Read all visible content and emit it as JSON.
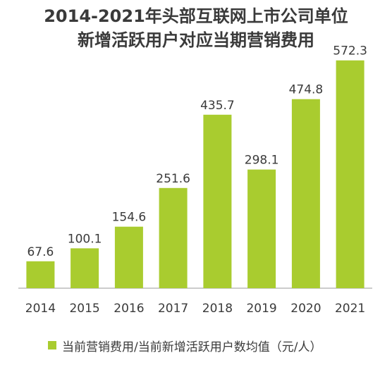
{
  "colors": {
    "bar": "#a9cc2f",
    "text": "#3a3a3a",
    "axis": "#9a9a9a"
  },
  "chart_data": {
    "type": "bar",
    "title_lines": [
      "2014-2021年头部互联网上市公司单位",
      "新增活跃用户对应当期营销费用"
    ],
    "categories": [
      "2014",
      "2015",
      "2016",
      "2017",
      "2018",
      "2019",
      "2020",
      "2021"
    ],
    "series": [
      {
        "name": "当前营销费用/当前新增活跃用户数均值（元/人）",
        "values": [
          67.6,
          100.1,
          154.6,
          251.6,
          435.7,
          298.1,
          474.8,
          572.3
        ],
        "labels": [
          "67.6",
          "100.1",
          "154.6",
          "251.6",
          "435.7",
          "298.1",
          "474.8",
          "572.3"
        ]
      }
    ],
    "ylim": [
      0,
      600
    ],
    "grid": false,
    "legend_position": "bottom-left",
    "data_labels": true
  }
}
